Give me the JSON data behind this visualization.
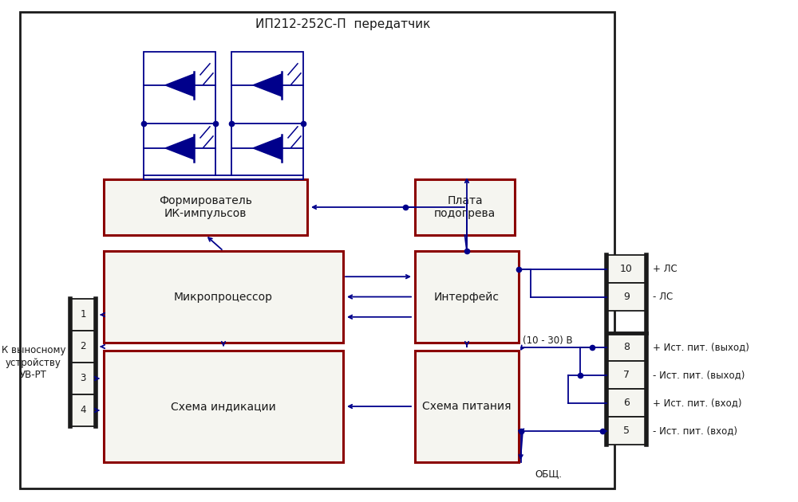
{
  "title": "ИП212-252С-П  передатчик",
  "bg_color": "#ffffff",
  "outer_border_color": "#1a1a1a",
  "block_border_color": "#8b0000",
  "line_color": "#00008b",
  "text_color": "#1a1a1a",
  "pin_labels": [
    "+ ЛС",
    "- ЛС",
    "+ Ист. пит. (выход)",
    "- Ист. пит. (выход)",
    "+ Ист. пит. (вход)",
    "- Ист. пит. (вход)"
  ]
}
